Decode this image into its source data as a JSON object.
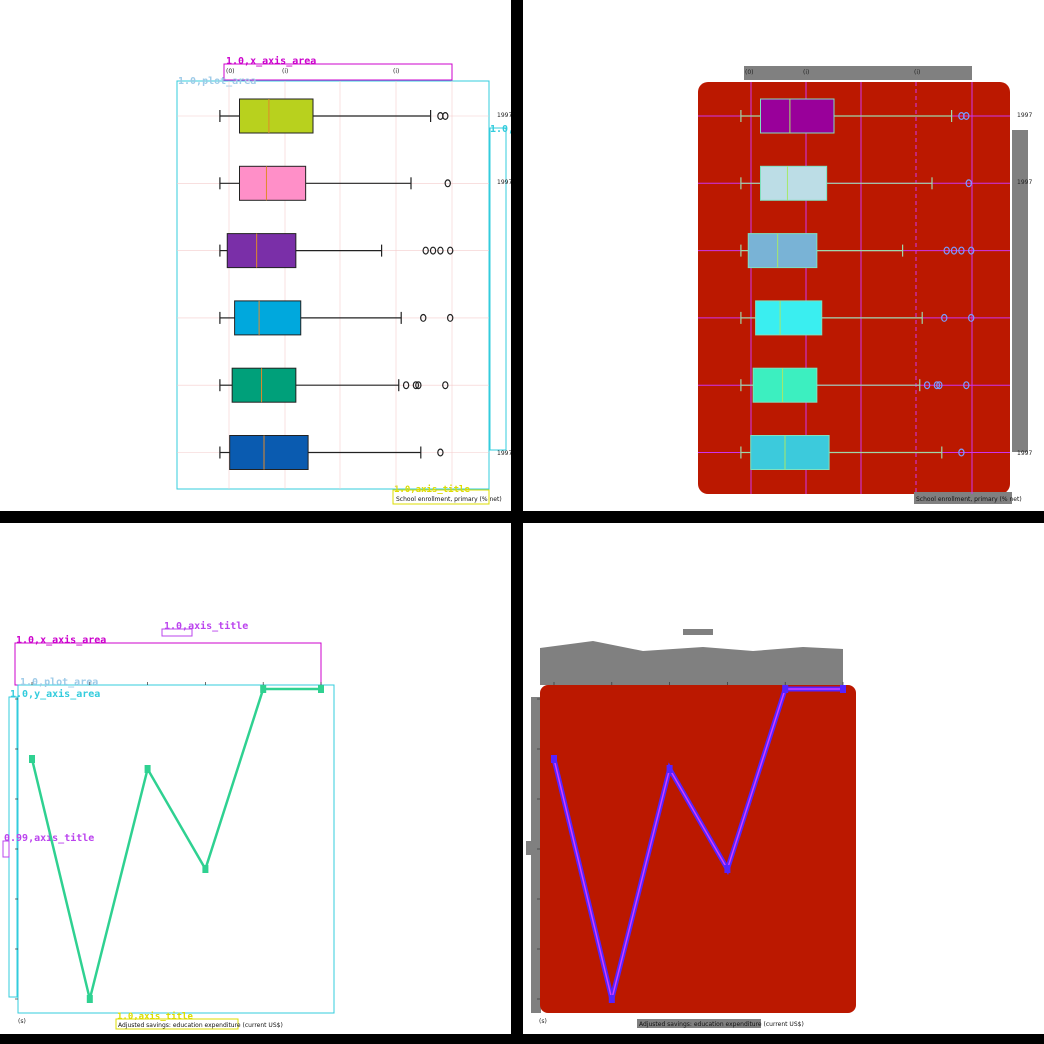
{
  "panels": {
    "top_left": {
      "annotation_labels": [
        "1.0,x_axis_area",
        "1.0,plot_area",
        "1.0,y_axis_area",
        "1.0,axis_title"
      ]
    },
    "bottom_left": {
      "annotation_labels": [
        "1.0,x_axis_area",
        "1.0,plot_area",
        "1.0,y_axis_area",
        "0.99,axis_title",
        "1.0,axis_title",
        "1.0,axis_title"
      ]
    }
  },
  "chart_data": [
    {
      "type": "box",
      "orientation": "horizontal",
      "xlabel": "School enrollment, primary (% net)",
      "ylabel": "",
      "x_ticks": [
        "(0)",
        "(i)",
        "(i)"
      ],
      "y_tick_first": "1997",
      "y_tick_second": "1997",
      "y_tick_last": "1997",
      "xlim": [
        0,
        100
      ],
      "series": [
        {
          "color": "#b8d11e",
          "whisker_low": 2,
          "q1": 10,
          "median": 22,
          "q3": 40,
          "whisker_high": 88,
          "outliers": [
            92,
            94
          ]
        },
        {
          "color": "#ff8fc8",
          "whisker_low": 2,
          "q1": 10,
          "median": 21,
          "q3": 37,
          "whisker_high": 80,
          "outliers": [
            95
          ]
        },
        {
          "color": "#7a2fa8",
          "whisker_low": 2,
          "q1": 5,
          "median": 17,
          "q3": 33,
          "whisker_high": 68,
          "outliers": [
            86,
            89,
            92,
            96
          ]
        },
        {
          "color": "#00a8dd",
          "whisker_low": 2,
          "q1": 8,
          "median": 18,
          "q3": 35,
          "whisker_high": 76,
          "outliers": [
            85,
            96
          ]
        },
        {
          "color": "#00a07a",
          "whisker_low": 2,
          "q1": 7,
          "median": 19,
          "q3": 33,
          "whisker_high": 75,
          "outliers": [
            78,
            82,
            83,
            94
          ]
        },
        {
          "color": "#0a5bb0",
          "whisker_low": 2,
          "q1": 6,
          "median": 20,
          "q3": 38,
          "whisker_high": 84,
          "outliers": [
            92
          ]
        }
      ]
    },
    {
      "type": "line",
      "title": "",
      "xlabel": "Adjusted savings: education expenditure (current US$)",
      "ylabel": "",
      "x": [
        1,
        2,
        3,
        4,
        5,
        6
      ],
      "x_ticks_first": "(s)",
      "x_ticks_last": "(s)",
      "ylim": [
        0,
        6
      ],
      "series": [
        {
          "color": "#2fd191",
          "values": [
            4.8,
            0.0,
            4.6,
            2.6,
            6.2,
            6.2
          ]
        }
      ]
    }
  ],
  "styles": {
    "annotation_magenta": "#cc00cc",
    "annotation_cyan": "#33ccdd",
    "annotation_yellow": "#dddd00",
    "annotation_purple": "#bb44ee",
    "mask_red": "#bb1800",
    "mask_gray": "#808080",
    "mask_blue": "#5522ff"
  }
}
